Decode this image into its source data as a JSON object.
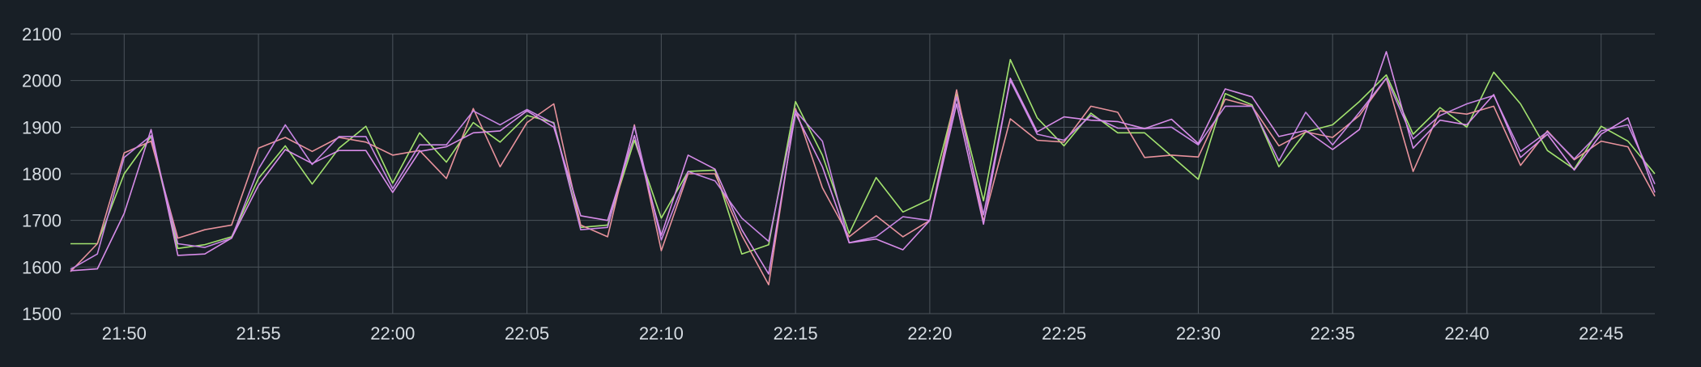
{
  "chart_data": {
    "type": "line",
    "title": "",
    "xlabel": "",
    "ylabel": "",
    "grid": true,
    "legend": "none",
    "ylim": [
      1500,
      2100
    ],
    "y_ticks": [
      1500,
      1600,
      1700,
      1800,
      1900,
      2000,
      2100
    ],
    "x_range_minutes": [
      "21:48",
      "22:47"
    ],
    "x_ticks": [
      "21:50",
      "21:55",
      "22:00",
      "22:05",
      "22:10",
      "22:15",
      "22:20",
      "22:25",
      "22:30",
      "22:35",
      "22:40",
      "22:45"
    ],
    "x_times": [
      "21:48",
      "21:49",
      "21:50",
      "21:51",
      "21:52",
      "21:53",
      "21:54",
      "21:55",
      "21:56",
      "21:57",
      "21:58",
      "21:59",
      "22:00",
      "22:01",
      "22:02",
      "22:03",
      "22:04",
      "22:05",
      "22:06",
      "22:07",
      "22:08",
      "22:09",
      "22:10",
      "22:11",
      "22:12",
      "22:13",
      "22:14",
      "22:15",
      "22:16",
      "22:17",
      "22:18",
      "22:19",
      "22:20",
      "22:21",
      "22:22",
      "22:23",
      "22:24",
      "22:25",
      "22:26",
      "22:27",
      "22:28",
      "22:29",
      "22:30",
      "22:31",
      "22:32",
      "22:33",
      "22:34",
      "22:35",
      "22:36",
      "22:37",
      "22:38",
      "22:39",
      "22:40",
      "22:41",
      "22:42",
      "22:43",
      "22:44",
      "22:45",
      "22:46",
      "22:47"
    ],
    "series": [
      {
        "color": "#a3e36f",
        "values": [
          1650,
          1650,
          1800,
          1880,
          1640,
          1648,
          1665,
          1790,
          1860,
          1778,
          1855,
          1902,
          1780,
          1888,
          1825,
          1910,
          1868,
          1925,
          1910,
          1685,
          1690,
          1872,
          1705,
          1805,
          1808,
          1628,
          1648,
          1955,
          1840,
          1672,
          1792,
          1718,
          1745,
          1970,
          1742,
          2045,
          1920,
          1860,
          1930,
          1888,
          1888,
          1838,
          1788,
          1972,
          1948,
          1815,
          1890,
          1905,
          1955,
          2012,
          1885,
          1942,
          1900,
          2018,
          1950,
          1850,
          1810,
          1902,
          1870,
          1800
        ]
      },
      {
        "color": "#e8929c",
        "values": [
          1590,
          1650,
          1845,
          1870,
          1662,
          1680,
          1690,
          1855,
          1878,
          1848,
          1878,
          1868,
          1840,
          1850,
          1790,
          1940,
          1815,
          1910,
          1950,
          1690,
          1665,
          1905,
          1635,
          1800,
          1800,
          1668,
          1562,
          1940,
          1770,
          1665,
          1710,
          1665,
          1700,
          1980,
          1698,
          1918,
          1872,
          1868,
          1945,
          1932,
          1835,
          1840,
          1836,
          1960,
          1945,
          1860,
          1890,
          1878,
          1925,
          2005,
          1805,
          1935,
          1928,
          1945,
          1818,
          1892,
          1830,
          1870,
          1858,
          1752
        ]
      },
      {
        "color": "#c886e4",
        "values": [
          1595,
          1628,
          1835,
          1882,
          1650,
          1642,
          1662,
          1810,
          1905,
          1820,
          1880,
          1880,
          1768,
          1862,
          1862,
          1935,
          1905,
          1938,
          1908,
          1680,
          1685,
          1902,
          1658,
          1805,
          1785,
          1705,
          1655,
          1935,
          1870,
          1652,
          1665,
          1708,
          1700,
          1965,
          1712,
          2000,
          1885,
          1872,
          1925,
          1898,
          1897,
          1900,
          1862,
          1945,
          1945,
          1828,
          1932,
          1862,
          1932,
          2005,
          1875,
          1925,
          1950,
          1968,
          1848,
          1890,
          1832,
          1892,
          1905,
          1778
        ]
      },
      {
        "color": "#d78ce8",
        "values": [
          1592,
          1596,
          1715,
          1895,
          1625,
          1628,
          1662,
          1775,
          1852,
          1822,
          1850,
          1850,
          1760,
          1848,
          1858,
          1888,
          1892,
          1935,
          1900,
          1710,
          1700,
          1882,
          1668,
          1840,
          1810,
          1680,
          1585,
          1930,
          1815,
          1652,
          1660,
          1637,
          1700,
          1950,
          1692,
          2005,
          1890,
          1922,
          1915,
          1912,
          1897,
          1917,
          1865,
          1982,
          1965,
          1880,
          1893,
          1852,
          1895,
          2062,
          1855,
          1915,
          1905,
          1970,
          1835,
          1885,
          1808,
          1885,
          1920,
          1760
        ]
      }
    ]
  }
}
